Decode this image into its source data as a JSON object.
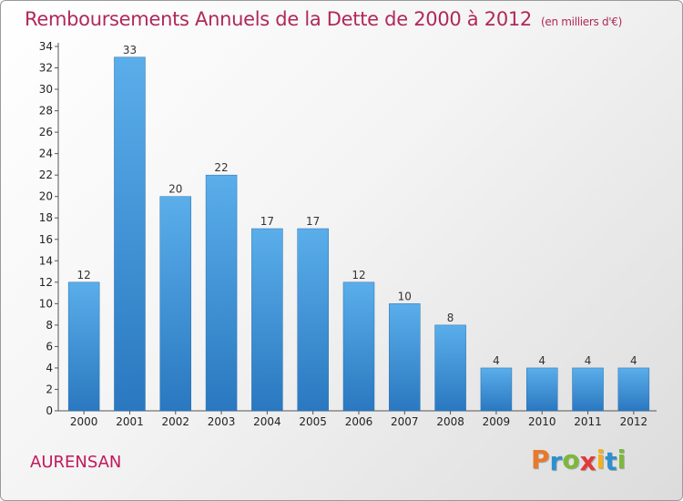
{
  "title": "Remboursements Annuels de la Dette de 2000 à 2012",
  "unit": "(en milliers d'€)",
  "place": "AURENSAN",
  "brand": [
    "P",
    "r",
    "o",
    "x",
    "i",
    "t",
    "i"
  ],
  "brand_colors": [
    "#e8792b",
    "#2e8fcf",
    "#7cb83a",
    "#e03a3a",
    "#f2b21b",
    "#2e8fcf",
    "#7cb83a"
  ],
  "colors": {
    "bar": "#3a8fd6",
    "title": "#b0285a",
    "place": "#c2185b"
  },
  "chart_data": {
    "type": "bar",
    "categories": [
      "2000",
      "2001",
      "2002",
      "2003",
      "2004",
      "2005",
      "2006",
      "2007",
      "2008",
      "2009",
      "2010",
      "2011",
      "2012"
    ],
    "values": [
      12,
      33,
      20,
      22,
      17,
      17,
      12,
      10,
      8,
      4,
      4,
      4,
      4
    ],
    "title": "Remboursements Annuels de la Dette de 2000 à 2012",
    "xlabel": "",
    "ylabel": "",
    "ylim": [
      0,
      34
    ],
    "yticks": [
      0,
      2,
      4,
      6,
      8,
      10,
      12,
      14,
      16,
      18,
      20,
      22,
      24,
      26,
      28,
      30,
      32,
      34
    ],
    "grid": false
  }
}
